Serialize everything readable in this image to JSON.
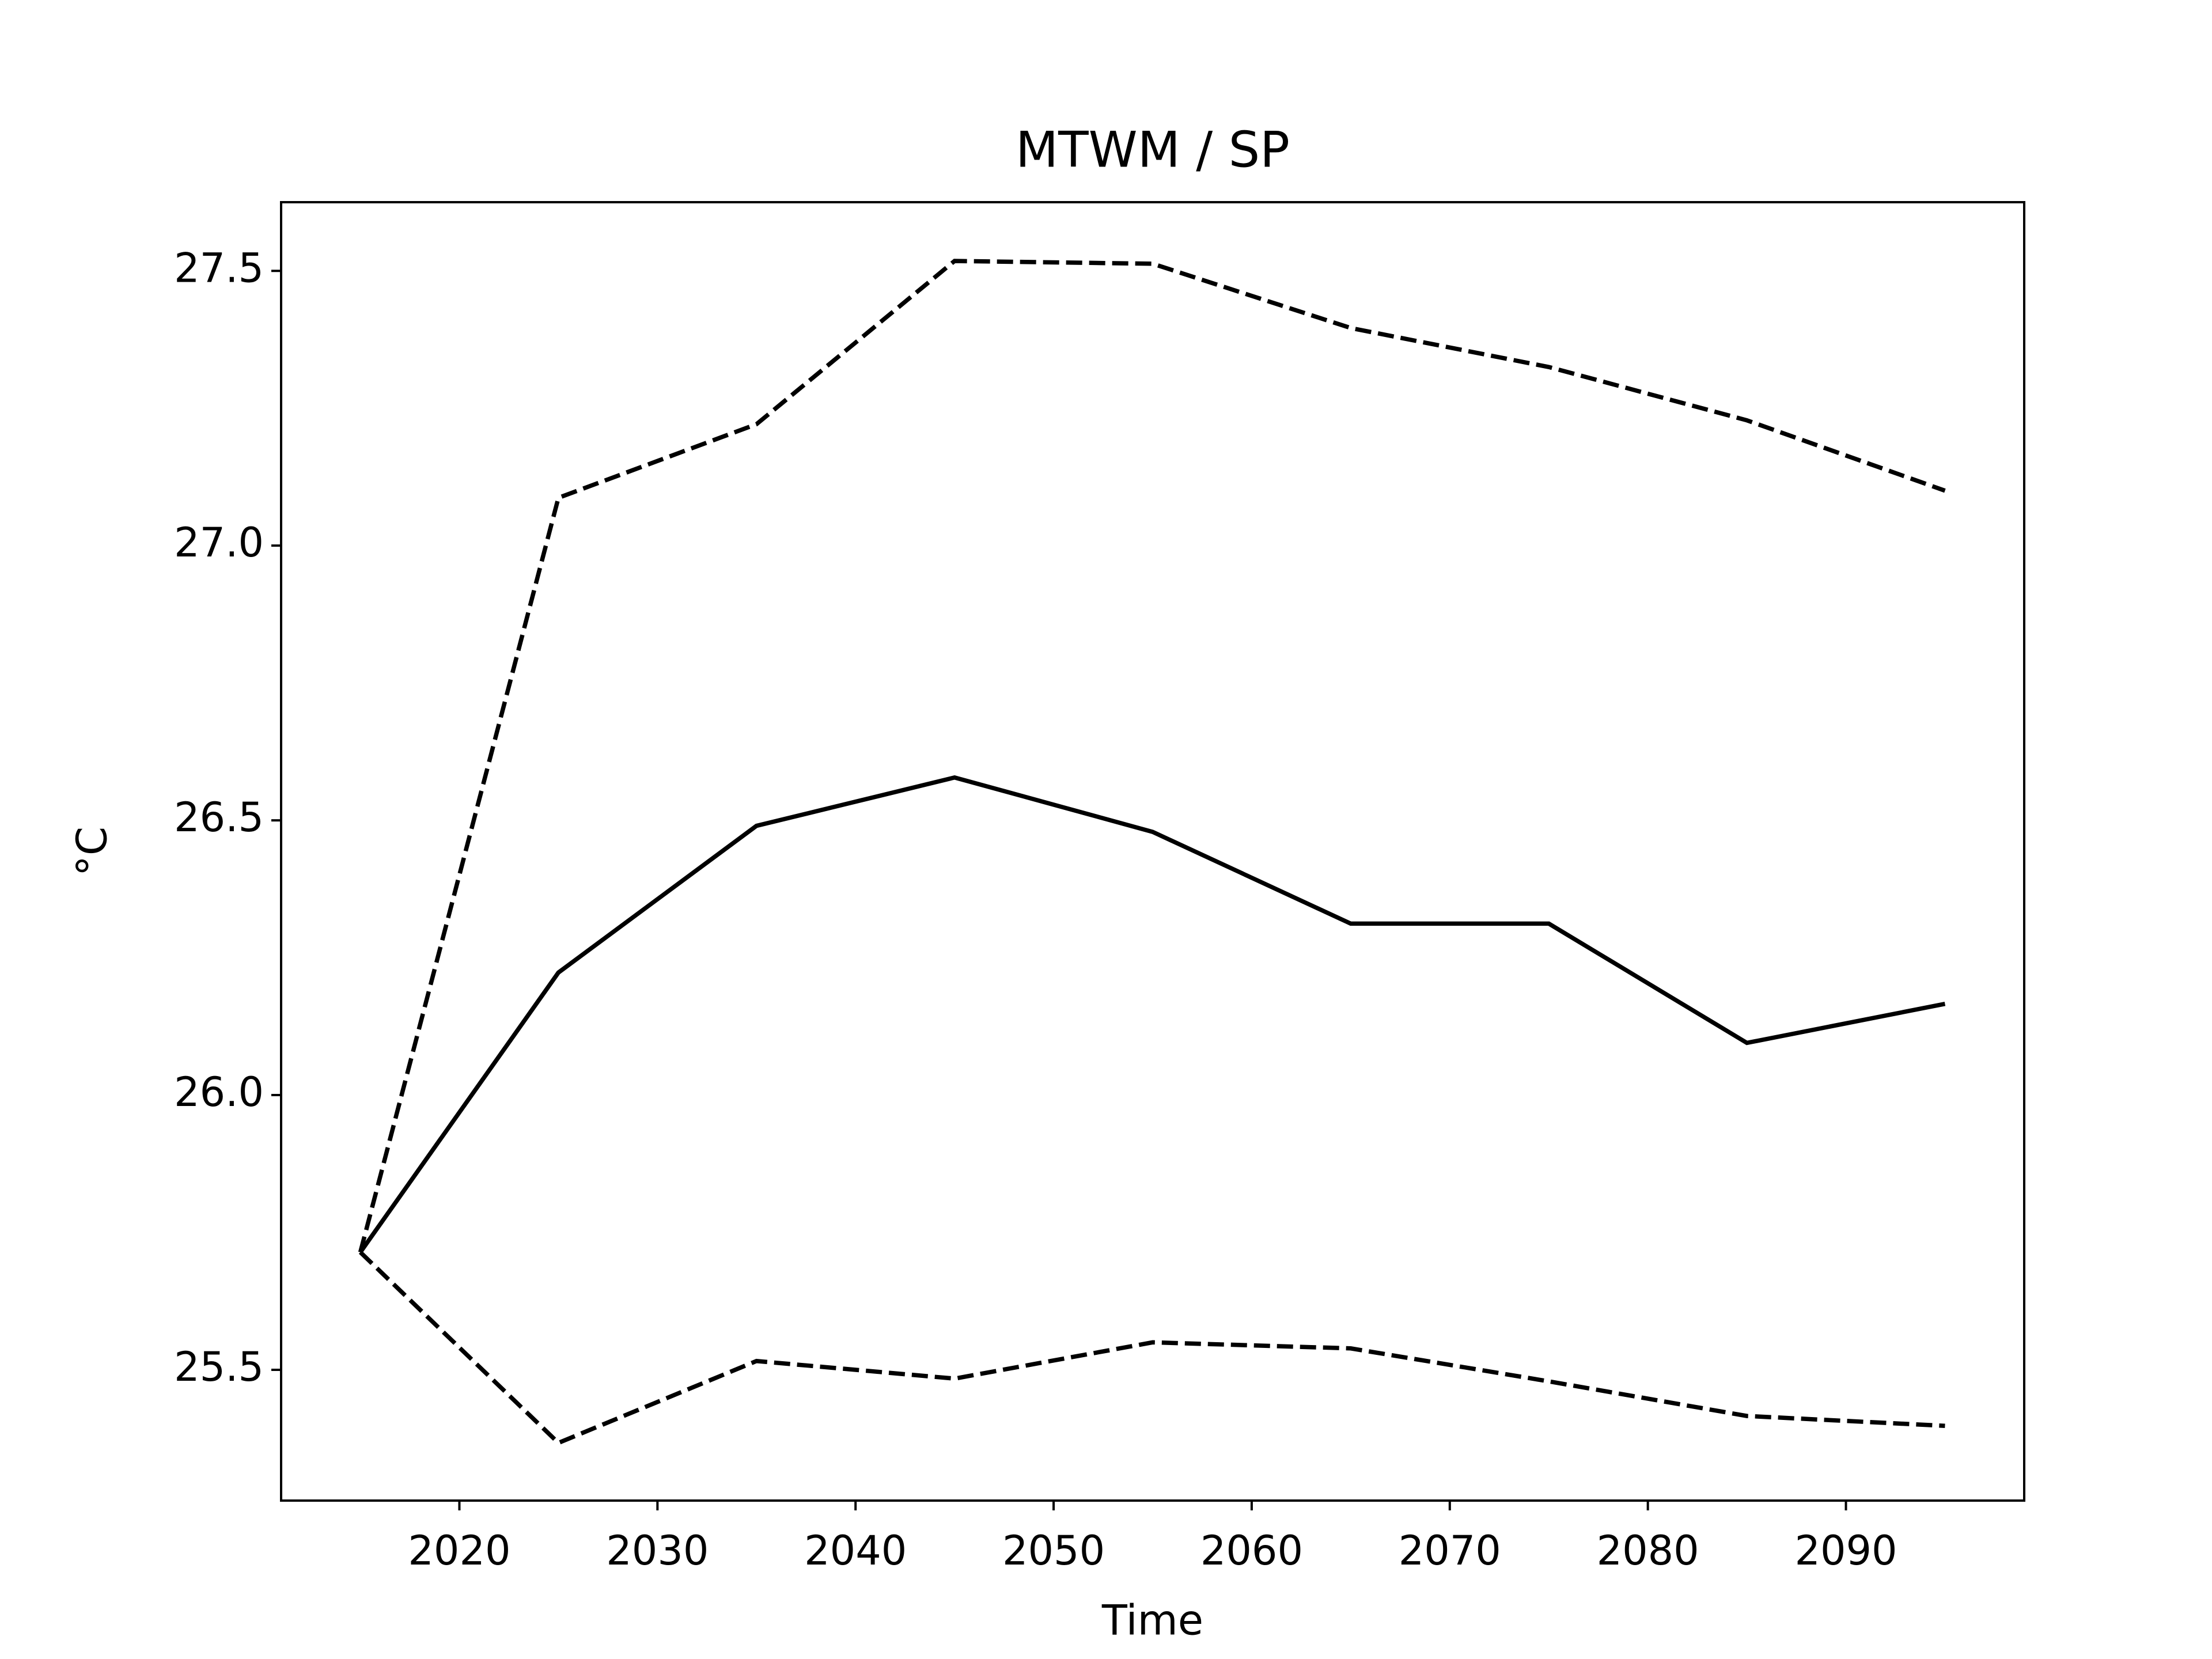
{
  "chart_data": {
    "type": "line",
    "title": "MTWM / SP",
    "x_label": "Time",
    "y_label": "°C",
    "x": [
      2015,
      2025,
      2035,
      2045,
      2055,
      2065,
      2075,
      2085,
      2095
    ],
    "series": [
      {
        "color": "#000000",
        "style": "solid",
        "values": [
          25.714,
          26.223,
          26.49,
          26.578,
          26.479,
          26.312,
          26.312,
          26.095,
          26.166
        ]
      },
      {
        "color": "#000000",
        "style": "dashed",
        "values": [
          25.714,
          27.087,
          27.221,
          27.518,
          27.513,
          27.396,
          27.325,
          27.228,
          27.1
        ]
      },
      {
        "color": "#000000",
        "style": "dashed",
        "values": [
          25.714,
          25.367,
          25.516,
          25.484,
          25.55,
          25.539,
          25.479,
          25.416,
          25.398
        ]
      }
    ],
    "xlim": [
      2011,
      2099
    ],
    "xticks": [
      2020,
      2030,
      2040,
      2050,
      2060,
      2070,
      2080,
      2090
    ],
    "ylim": [
      25.262,
      27.625
    ],
    "yticks": [
      {
        "value": 25.5,
        "label": "25.5"
      },
      {
        "value": 26,
        "label": "26.0"
      },
      {
        "value": 26.5,
        "label": "26.5"
      },
      {
        "value": 27,
        "label": "27.0"
      },
      {
        "value": 27.5,
        "label": "27.5"
      }
    ],
    "grid": false
  }
}
